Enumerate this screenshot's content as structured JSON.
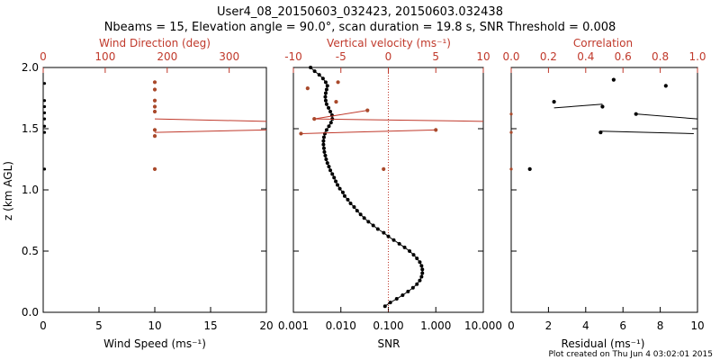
{
  "header": {
    "title_line1": "User4_08_20150603_032423, 20150603.032438",
    "title_line2": "Nbeams = 15, Elevation angle = 90.0°, scan duration = 19.8 s, SNR Threshold = 0.008"
  },
  "credit": "Plot created on Thu Jun  4 03:02:01 2015",
  "colors": {
    "axis": "#000000",
    "red": "#c0392b",
    "marker": "#a9492b"
  },
  "chart_data": [
    {
      "type": "scatter",
      "name": "wind",
      "title": "",
      "ylabel": "z (km AGL)",
      "ylim": [
        0,
        2.0
      ],
      "yticks": [
        "0.0",
        "0.5",
        "1.0",
        "1.5",
        "2.0"
      ],
      "yticks_values": [
        0,
        0.5,
        1.0,
        1.5,
        2.0
      ],
      "bottom_axis": {
        "label": "Wind Speed (ms⁻¹)",
        "range": [
          0,
          20
        ],
        "ticks": [
          "0",
          "5",
          "10",
          "15",
          "20"
        ],
        "tick_values": [
          0,
          5,
          10,
          15,
          20
        ]
      },
      "top_axis": {
        "label": "Wind Direction (deg)",
        "range": [
          0,
          360
        ],
        "ticks": [
          "0",
          "100",
          "200",
          "300"
        ],
        "tick_values": [
          0,
          100,
          200,
          300
        ]
      },
      "speed_points": {
        "z": [
          1.17,
          1.47,
          1.52,
          1.58,
          1.63,
          1.68,
          1.73,
          1.87
        ],
        "speed": [
          0,
          0,
          0,
          0,
          0,
          0,
          0,
          0
        ]
      },
      "direction_points": {
        "z": [
          1.17,
          1.44,
          1.49,
          1.64,
          1.68,
          1.73,
          1.82,
          1.88
        ],
        "dir": [
          180,
          180,
          180,
          180,
          180,
          180,
          180,
          180
        ]
      },
      "direction_lines": [
        {
          "z": [
            1.58,
            1.56
          ],
          "dir": [
            180,
            360
          ]
        },
        {
          "z": [
            1.47,
            1.49
          ],
          "dir": [
            180,
            360
          ]
        }
      ]
    },
    {
      "type": "line",
      "name": "velocity",
      "bottom_axis": {
        "label": "SNR",
        "scale": "log",
        "range": [
          0.001,
          10.0
        ],
        "ticks": [
          "0.001",
          "0.010",
          "0.100",
          "1.000",
          "10.000"
        ],
        "tick_values": [
          0.001,
          0.01,
          0.1,
          1.0,
          10.0
        ]
      },
      "top_axis": {
        "label": "Vertical velocity (ms⁻¹)",
        "range": [
          -10,
          10
        ],
        "ticks": [
          "-10",
          "-5",
          "0",
          "5",
          "10"
        ],
        "tick_values": [
          -10,
          -5,
          0,
          5,
          10
        ]
      },
      "ylim": [
        0,
        2.0
      ],
      "zero_line": 0,
      "snr_series": {
        "z": [
          0.05,
          0.08,
          0.11,
          0.14,
          0.17,
          0.2,
          0.23,
          0.26,
          0.29,
          0.32,
          0.35,
          0.38,
          0.41,
          0.44,
          0.47,
          0.5,
          0.53,
          0.56,
          0.59,
          0.62,
          0.65,
          0.68,
          0.71,
          0.74,
          0.77,
          0.8,
          0.83,
          0.86,
          0.89,
          0.92,
          0.95,
          0.98,
          1.01,
          1.04,
          1.07,
          1.1,
          1.13,
          1.16,
          1.19,
          1.22,
          1.25,
          1.28,
          1.31,
          1.34,
          1.37,
          1.4,
          1.43,
          1.46,
          1.49,
          1.52,
          1.55,
          1.58,
          1.61,
          1.64,
          1.67,
          1.7,
          1.73,
          1.76,
          1.79,
          1.82,
          1.85,
          1.88,
          1.91,
          1.94,
          1.97,
          2.0
        ],
        "snr": [
          0.085,
          0.11,
          0.15,
          0.2,
          0.26,
          0.33,
          0.4,
          0.46,
          0.5,
          0.52,
          0.52,
          0.5,
          0.46,
          0.4,
          0.34,
          0.28,
          0.22,
          0.17,
          0.13,
          0.1,
          0.08,
          0.06,
          0.048,
          0.038,
          0.031,
          0.026,
          0.022,
          0.019,
          0.016,
          0.014,
          0.012,
          0.011,
          0.0095,
          0.0085,
          0.0078,
          0.0072,
          0.0066,
          0.006,
          0.0056,
          0.0052,
          0.0049,
          0.0047,
          0.0045,
          0.0044,
          0.0043,
          0.0043,
          0.0044,
          0.0046,
          0.005,
          0.0056,
          0.0062,
          0.0066,
          0.0065,
          0.006,
          0.0055,
          0.005,
          0.0048,
          0.0047,
          0.0048,
          0.005,
          0.0052,
          0.0048,
          0.0042,
          0.0035,
          0.0028,
          0.0023
        ]
      },
      "velocity_points": {
        "z": [
          1.17,
          1.46,
          1.49,
          1.58,
          1.65,
          1.72,
          1.83,
          1.88
        ],
        "w": [
          -0.5,
          -9.2,
          5.0,
          -7.8,
          -2.2,
          -5.5,
          -8.5,
          -5.3
        ]
      },
      "velocity_lines": [
        {
          "z": [
            1.58,
            1.56
          ],
          "w": [
            -7.8,
            10
          ]
        },
        {
          "z": [
            1.46,
            1.49
          ],
          "w": [
            -9.2,
            5.0
          ]
        },
        {
          "z": [
            1.58,
            1.65
          ],
          "w": [
            -7.8,
            -2.2
          ]
        }
      ]
    },
    {
      "type": "scatter",
      "name": "residual",
      "bottom_axis": {
        "label": "Residual (ms⁻¹)",
        "range": [
          0,
          10
        ],
        "ticks": [
          "0",
          "2",
          "4",
          "6",
          "8",
          "10"
        ],
        "tick_values": [
          0,
          2,
          4,
          6,
          8,
          10
        ]
      },
      "top_axis": {
        "label": "Correlation",
        "range": [
          0.0,
          1.0
        ],
        "ticks": [
          "0.0",
          "0.2",
          "0.4",
          "0.6",
          "0.8",
          "1.0"
        ],
        "tick_values": [
          0.0,
          0.2,
          0.4,
          0.6,
          0.8,
          1.0
        ]
      },
      "ylim": [
        0,
        2.0
      ],
      "residual_points": {
        "z": [
          1.17,
          1.47,
          1.62,
          1.68,
          1.72,
          1.85,
          1.9
        ],
        "res": [
          1.0,
          4.8,
          6.7,
          4.9,
          2.3,
          8.3,
          5.5
        ]
      },
      "residual_lines": [
        {
          "z": [
            1.48,
            1.46
          ],
          "res": [
            4.8,
            9.8
          ]
        },
        {
          "z": [
            1.62,
            1.58
          ],
          "res": [
            6.7,
            10
          ]
        },
        {
          "z": [
            1.67,
            1.7
          ],
          "res": [
            2.3,
            4.9
          ]
        }
      ],
      "correlation_points": {
        "z": [
          1.17,
          1.47,
          1.62
        ],
        "corr": [
          0.0,
          0.0,
          0.0
        ]
      }
    }
  ]
}
